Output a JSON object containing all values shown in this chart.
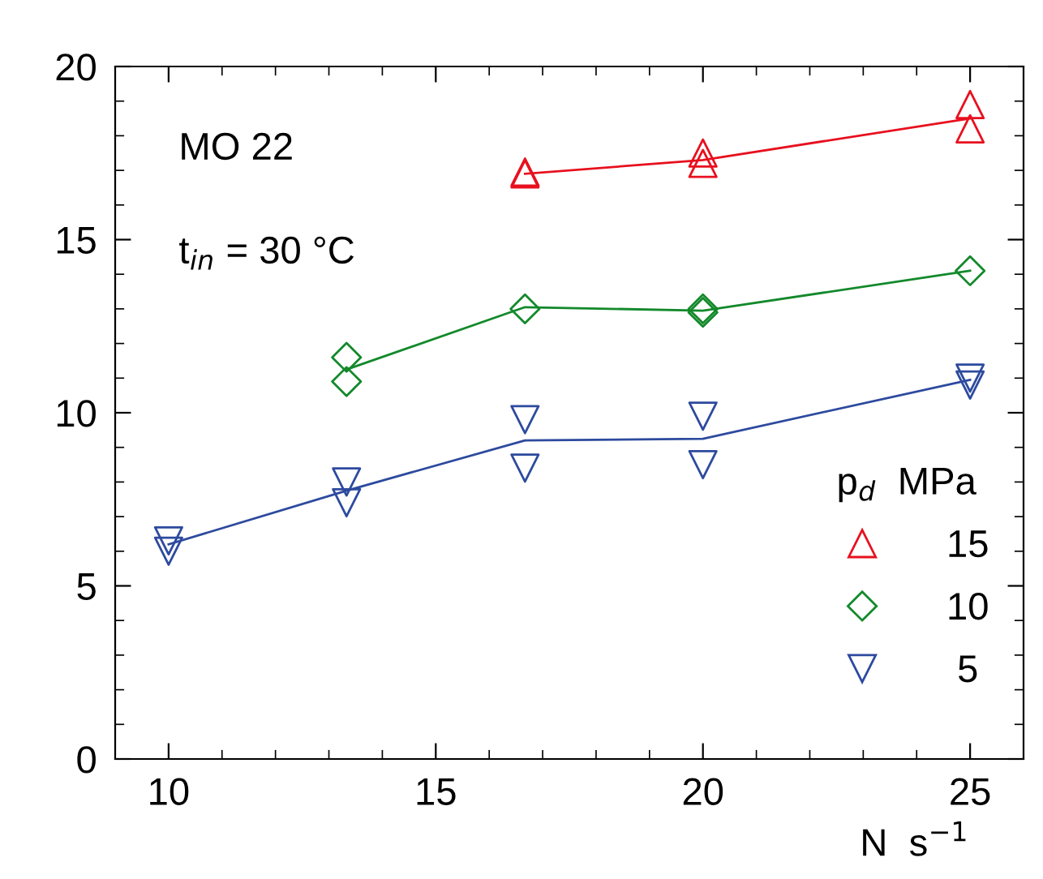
{
  "chart_data": {
    "type": "scatter",
    "xlabel": "N  s$^{−1}$",
    "legend_title": "p$_{d}$  MPa",
    "legend": "bottom right",
    "grid": false,
    "xlim": [
      9,
      26
    ],
    "ylim": [
      0,
      20
    ],
    "xticks": [
      10,
      15,
      20,
      25
    ],
    "yticks": [
      0,
      5,
      10,
      15,
      20
    ],
    "annotations": [
      "MO 22",
      "t$_{in}$ = 30 °C"
    ],
    "series": [
      {
        "type": "line",
        "color": "#e8101e",
        "x": [
          16.67,
          20,
          25
        ],
        "values": [
          16.9,
          17.3,
          18.5
        ],
        "marker": "none"
      },
      {
        "type": "line",
        "color": "#13892b",
        "x": [
          13.33,
          16.67,
          20,
          25
        ],
        "values": [
          11.25,
          13.05,
          12.95,
          14.1
        ],
        "marker": "none"
      },
      {
        "type": "line",
        "color": "#2d4a9e",
        "x": [
          10,
          13.33,
          16.67,
          20,
          25
        ],
        "values": [
          6.2,
          7.75,
          9.2,
          9.25,
          10.95
        ],
        "marker": "none"
      },
      {
        "name": "15",
        "color": "#e8101e",
        "marker": "triangle",
        "x": [
          16.67,
          16.67,
          20,
          20,
          25,
          25
        ],
        "values": [
          16.9,
          16.95,
          17.5,
          17.2,
          18.9,
          18.2
        ]
      },
      {
        "name": "10",
        "color": "#13892b",
        "marker": "diamond",
        "x": [
          13.33,
          13.33,
          16.67,
          20,
          20,
          25
        ],
        "values": [
          11.6,
          10.9,
          13.0,
          13.0,
          12.9,
          14.1
        ]
      },
      {
        "name": " 5",
        "color": "#2d4a9e",
        "marker": "triangle_down",
        "x": [
          10,
          10,
          13.33,
          13.33,
          16.67,
          16.67,
          20,
          20,
          25,
          25
        ],
        "values": [
          6.3,
          6.0,
          8.0,
          7.4,
          9.8,
          8.4,
          9.9,
          8.5,
          11.0,
          10.8
        ]
      }
    ]
  }
}
